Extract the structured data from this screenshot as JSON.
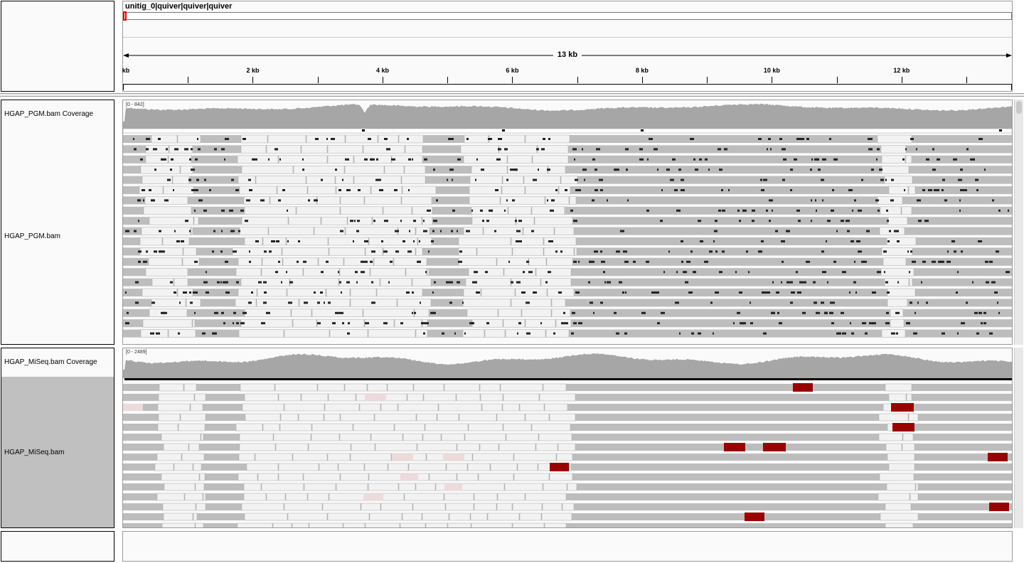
{
  "ruler": {
    "chromosome": "unitig_0|quiver|quiver|quiver",
    "span_label": "13 kb",
    "ticks": [
      {
        "label": "kb",
        "kb": 0
      },
      {
        "label": "2 kb",
        "kb": 2
      },
      {
        "label": "4 kb",
        "kb": 4
      },
      {
        "label": "6 kb",
        "kb": 6
      },
      {
        "label": "8 kb",
        "kb": 8
      },
      {
        "label": "10 kb",
        "kb": 10
      },
      {
        "label": "12 kb",
        "kb": 12
      }
    ],
    "total_kb": 13.7
  },
  "tracks": {
    "pgm_coverage": {
      "name": "HGAP_PGM.bam Coverage",
      "range": "[0 - 842]"
    },
    "pgm_alignments": {
      "name": "HGAP_PGM.bam"
    },
    "miseq_coverage": {
      "name": "HGAP_MiSeq.bam Coverage",
      "range": "[0 - 2489]"
    },
    "miseq_alignments": {
      "name": "HGAP_MiSeq.bam"
    }
  },
  "colors": {
    "coverage": "#a6a6a6",
    "read": "#bdbdbd",
    "read_light": "#f2f2f2",
    "selected_label_bg": "#c0c0c0",
    "mismatch_red": "#990000",
    "insertion": "#000000"
  }
}
